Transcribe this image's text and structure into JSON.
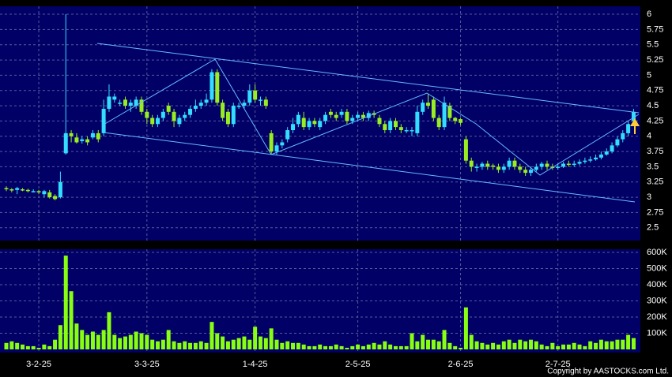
{
  "chart_data": [
    {
      "type": "candlestick",
      "categories": [
        null,
        null,
        null,
        null,
        null,
        null,
        "3-2-25",
        null,
        null,
        null,
        null,
        null,
        null,
        null,
        null,
        null,
        null,
        null,
        null,
        null,
        null,
        null,
        null,
        null,
        null,
        null,
        "3-3-25",
        null,
        null,
        null,
        null,
        null,
        null,
        null,
        null,
        null,
        null,
        null,
        null,
        null,
        null,
        null,
        null,
        null,
        null,
        null,
        "1-4-25",
        null,
        null,
        null,
        null,
        null,
        null,
        null,
        null,
        null,
        null,
        null,
        null,
        null,
        null,
        null,
        null,
        null,
        null,
        "2-5-25",
        null,
        null,
        null,
        null,
        null,
        null,
        null,
        null,
        null,
        null,
        null,
        null,
        null,
        null,
        null,
        null,
        null,
        null,
        "2-6-25",
        null,
        null,
        null,
        null,
        null,
        null,
        null,
        null,
        null,
        null,
        null,
        null,
        null,
        null,
        null,
        null,
        null,
        "2-7-25",
        null,
        null,
        null,
        null,
        null,
        null,
        null,
        null,
        null,
        null,
        null,
        null,
        null,
        null
      ],
      "open": [
        3.15,
        3.13,
        3.12,
        3.13,
        3.12,
        3.1,
        3.1,
        3.05,
        3.08,
        3.02,
        3.0,
        3.72,
        4.05,
        3.98,
        3.92,
        3.95,
        3.98,
        4.05,
        4.05,
        4.45,
        4.6,
        4.55,
        4.6,
        4.5,
        4.5,
        4.6,
        4.4,
        4.3,
        4.2,
        4.3,
        4.5,
        4.4,
        4.2,
        4.3,
        4.35,
        4.45,
        4.5,
        4.55,
        4.6,
        5.05,
        4.55,
        4.4,
        4.2,
        4.5,
        4.5,
        4.55,
        4.75,
        4.6,
        4.6,
        4.05,
        3.75,
        3.85,
        3.95,
        4.1,
        4.2,
        4.3,
        4.15,
        4.25,
        4.15,
        4.25,
        4.4,
        4.35,
        4.35,
        4.4,
        4.25,
        4.3,
        4.35,
        4.3,
        4.38,
        4.3,
        4.2,
        4.1,
        4.25,
        4.15,
        4.1,
        4.1,
        4.05,
        4.4,
        4.55,
        4.6,
        4.3,
        4.15,
        4.5,
        4.3,
        4.28,
        3.95,
        3.6,
        3.48,
        3.5,
        3.55,
        3.52,
        3.5,
        3.45,
        3.5,
        3.6,
        3.5,
        3.45,
        3.4,
        3.45,
        3.5,
        3.55,
        3.5,
        3.48,
        3.5,
        3.55,
        3.53,
        3.55,
        3.58,
        3.6,
        3.62,
        3.65,
        3.7,
        3.75,
        3.85,
        3.95,
        4.05,
        4.25
      ],
      "high": [
        3.18,
        3.15,
        3.17,
        3.15,
        3.14,
        3.13,
        3.12,
        3.12,
        3.12,
        3.05,
        3.42,
        6.0,
        4.1,
        4.05,
        4.0,
        4.0,
        4.1,
        4.1,
        4.6,
        4.85,
        4.7,
        4.6,
        4.65,
        4.6,
        4.65,
        4.65,
        4.45,
        4.35,
        4.35,
        4.45,
        4.55,
        4.45,
        4.35,
        4.4,
        4.5,
        4.6,
        4.6,
        4.7,
        5.1,
        5.1,
        4.6,
        4.45,
        4.55,
        4.55,
        4.6,
        4.85,
        4.85,
        4.65,
        4.65,
        4.1,
        3.9,
        3.95,
        4.15,
        4.3,
        4.4,
        4.4,
        4.3,
        4.3,
        4.3,
        4.4,
        4.45,
        4.4,
        4.45,
        4.45,
        4.35,
        4.4,
        4.4,
        4.42,
        4.42,
        4.35,
        4.25,
        4.3,
        4.3,
        4.2,
        4.15,
        4.15,
        4.5,
        4.6,
        4.7,
        4.65,
        4.35,
        4.65,
        4.55,
        4.32,
        4.3,
        4.0,
        3.65,
        3.55,
        3.58,
        3.6,
        3.55,
        3.55,
        3.55,
        3.65,
        3.65,
        3.55,
        3.5,
        3.5,
        3.55,
        3.58,
        3.6,
        3.55,
        3.55,
        3.58,
        3.6,
        3.6,
        3.62,
        3.65,
        3.67,
        3.7,
        3.75,
        3.8,
        3.9,
        4.0,
        4.1,
        4.25,
        4.45
      ],
      "low": [
        3.1,
        3.08,
        3.05,
        3.1,
        3.08,
        3.08,
        3.05,
        3.0,
        2.98,
        2.95,
        2.98,
        3.7,
        3.9,
        3.88,
        3.88,
        3.85,
        3.95,
        3.9,
        4.0,
        4.4,
        4.55,
        4.5,
        4.45,
        4.4,
        4.45,
        4.35,
        4.2,
        4.15,
        4.15,
        4.25,
        4.35,
        4.15,
        4.15,
        4.25,
        4.3,
        4.4,
        4.45,
        4.5,
        4.55,
        4.5,
        4.25,
        4.15,
        4.15,
        4.45,
        4.45,
        4.5,
        4.55,
        4.5,
        4.45,
        3.7,
        3.7,
        3.8,
        3.9,
        4.05,
        4.15,
        4.1,
        4.1,
        4.15,
        4.1,
        4.2,
        4.3,
        4.25,
        4.3,
        4.2,
        4.2,
        4.25,
        4.25,
        4.25,
        4.3,
        4.15,
        4.05,
        4.05,
        4.1,
        4.05,
        4.05,
        4.0,
        4.0,
        4.35,
        4.45,
        4.25,
        4.1,
        4.1,
        4.25,
        4.2,
        4.18,
        3.55,
        3.42,
        3.42,
        3.45,
        3.45,
        3.45,
        3.4,
        3.4,
        3.45,
        3.45,
        3.4,
        3.35,
        3.35,
        3.42,
        3.45,
        3.45,
        3.45,
        3.45,
        3.48,
        3.5,
        3.5,
        3.52,
        3.55,
        3.57,
        3.6,
        3.62,
        3.68,
        3.72,
        3.82,
        3.9,
        4.0,
        4.2
      ],
      "close": [
        3.13,
        3.12,
        3.15,
        3.12,
        3.1,
        3.1,
        3.08,
        3.1,
        3.0,
        2.97,
        3.25,
        4.05,
        4.0,
        3.9,
        3.95,
        3.9,
        4.05,
        3.95,
        4.45,
        4.65,
        4.65,
        4.55,
        4.5,
        4.55,
        4.6,
        4.4,
        4.3,
        4.2,
        4.3,
        4.4,
        4.4,
        4.25,
        4.3,
        4.35,
        4.45,
        4.5,
        4.55,
        4.6,
        5.05,
        4.55,
        4.3,
        4.2,
        4.5,
        4.5,
        4.55,
        4.75,
        4.6,
        4.6,
        4.5,
        3.75,
        3.85,
        3.9,
        4.1,
        4.2,
        4.35,
        4.15,
        4.25,
        4.2,
        4.25,
        4.35,
        4.35,
        4.3,
        4.4,
        4.25,
        4.3,
        4.35,
        4.3,
        4.38,
        4.35,
        4.2,
        4.1,
        4.25,
        4.15,
        4.1,
        4.1,
        4.1,
        4.4,
        4.55,
        4.5,
        4.3,
        4.15,
        4.55,
        4.3,
        4.25,
        4.22,
        3.6,
        3.5,
        3.5,
        3.55,
        3.5,
        3.5,
        3.45,
        3.5,
        3.6,
        3.5,
        3.45,
        3.4,
        3.45,
        3.5,
        3.55,
        3.5,
        3.48,
        3.5,
        3.55,
        3.53,
        3.55,
        3.58,
        3.6,
        3.62,
        3.65,
        3.7,
        3.75,
        3.85,
        3.95,
        4.05,
        4.2,
        4.4
      ],
      "up_color": "#33ddff",
      "down_color": "#99ee22",
      "ylim": [
        2.29,
        6.13
      ],
      "yticks": [
        2.5,
        2.75,
        3,
        3.25,
        3.5,
        3.75,
        4,
        4.25,
        4.5,
        4.75,
        5,
        5.25,
        5.5,
        5.75,
        6
      ],
      "grid": true
    },
    {
      "type": "bar",
      "values": [
        40000,
        50000,
        40000,
        30000,
        20000,
        20000,
        10000,
        30000,
        20000,
        60000,
        150000,
        580000,
        360000,
        160000,
        120000,
        90000,
        110000,
        90000,
        120000,
        230000,
        90000,
        70000,
        80000,
        90000,
        110000,
        100000,
        90000,
        60000,
        50000,
        60000,
        120000,
        50000,
        40000,
        50000,
        40000,
        40000,
        50000,
        40000,
        170000,
        100000,
        80000,
        50000,
        60000,
        70000,
        80000,
        60000,
        140000,
        80000,
        70000,
        130000,
        60000,
        40000,
        50000,
        40000,
        40000,
        30000,
        20000,
        20000,
        30000,
        20000,
        20000,
        30000,
        20000,
        10000,
        20000,
        30000,
        20000,
        30000,
        40000,
        30000,
        50000,
        30000,
        20000,
        20000,
        20000,
        100000,
        50000,
        90000,
        60000,
        60000,
        50000,
        120000,
        40000,
        20000,
        10000,
        260000,
        90000,
        50000,
        40000,
        30000,
        40000,
        30000,
        50000,
        60000,
        40000,
        60000,
        50000,
        60000,
        50000,
        30000,
        20000,
        40000,
        20000,
        30000,
        30000,
        40000,
        30000,
        20000,
        50000,
        40000,
        60000,
        50000,
        50000,
        60000,
        60000,
        90000,
        70000
      ],
      "color": "#88ff11",
      "ylim": [
        0,
        600000
      ],
      "yticks": [
        {
          "value": 100000,
          "label": "100K"
        },
        {
          "value": 200000,
          "label": "200K"
        },
        {
          "value": 300000,
          "label": "300K"
        },
        {
          "value": 400000,
          "label": "400K"
        },
        {
          "value": 500000,
          "label": "500K"
        },
        {
          "value": 600000,
          "label": "600K"
        }
      ],
      "grid": true,
      "footer": "Copyright by AASTOCKS.com Ltd."
    }
  ]
}
